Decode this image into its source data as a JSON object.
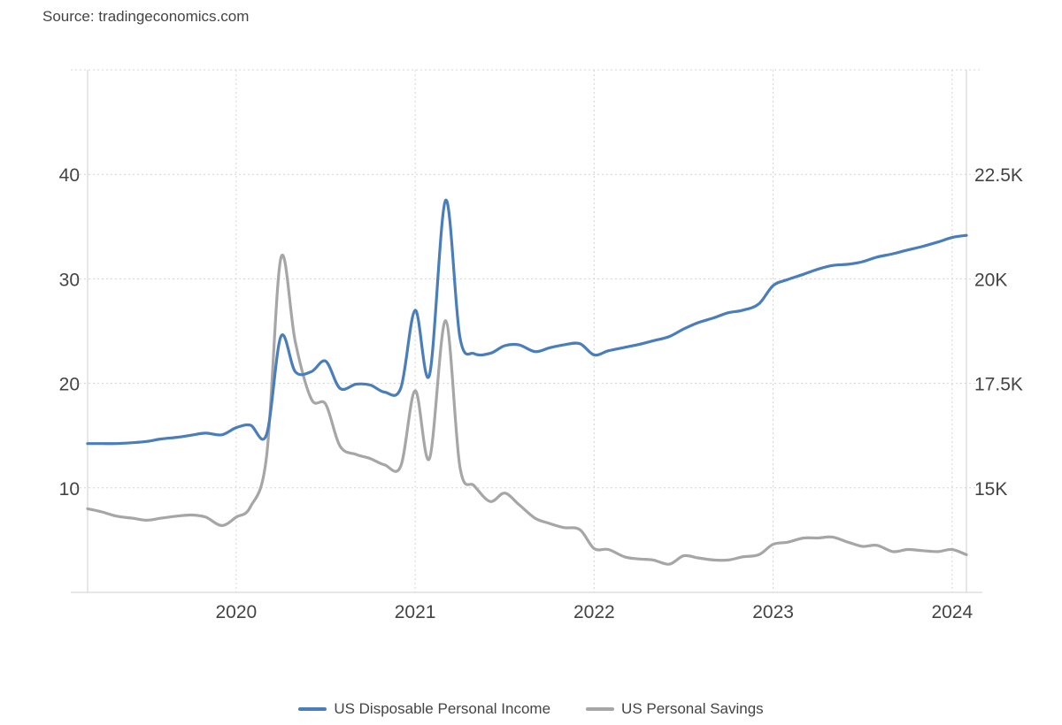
{
  "source_text": "Source: tradingeconomics.com",
  "colors": {
    "income": "#4a7ebb",
    "savings": "#a6a6a6",
    "grid": "#d4d4d4"
  },
  "chart_data": {
    "type": "line",
    "x_start": 2019.17,
    "x_end": 2024.08,
    "x_ticks": [
      {
        "value": 2020,
        "label": "2020"
      },
      {
        "value": 2021,
        "label": "2021"
      },
      {
        "value": 2022,
        "label": "2022"
      },
      {
        "value": 2023,
        "label": "2023"
      },
      {
        "value": 2024,
        "label": "2024"
      }
    ],
    "y_left": {
      "range": [
        0,
        50
      ],
      "ticks": [
        {
          "value": 10,
          "label": "10"
        },
        {
          "value": 20,
          "label": "20"
        },
        {
          "value": 30,
          "label": "30"
        },
        {
          "value": 40,
          "label": "40"
        }
      ]
    },
    "y_right": {
      "range": [
        12500,
        25000
      ],
      "ticks": [
        {
          "value": 15000,
          "label": "15K"
        },
        {
          "value": 17500,
          "label": "17.5K"
        },
        {
          "value": 20000,
          "label": "20K"
        },
        {
          "value": 22500,
          "label": "22.5K"
        }
      ]
    },
    "grid": true,
    "legend_position": "bottom-center",
    "series": [
      {
        "name": "US Disposable Personal Income",
        "axis": "right",
        "color": "#4a7ebb",
        "points": [
          [
            2019.17,
            16060
          ],
          [
            2019.25,
            16060
          ],
          [
            2019.33,
            16060
          ],
          [
            2019.42,
            16080
          ],
          [
            2019.5,
            16110
          ],
          [
            2019.58,
            16170
          ],
          [
            2019.67,
            16210
          ],
          [
            2019.75,
            16260
          ],
          [
            2019.83,
            16310
          ],
          [
            2019.92,
            16270
          ],
          [
            2020.0,
            16440
          ],
          [
            2020.08,
            16500
          ],
          [
            2020.17,
            16280
          ],
          [
            2020.25,
            18620
          ],
          [
            2020.33,
            17780
          ],
          [
            2020.42,
            17780
          ],
          [
            2020.5,
            18030
          ],
          [
            2020.58,
            17380
          ],
          [
            2020.67,
            17480
          ],
          [
            2020.75,
            17460
          ],
          [
            2020.83,
            17290
          ],
          [
            2020.92,
            17390
          ],
          [
            2021.0,
            19250
          ],
          [
            2021.08,
            17700
          ],
          [
            2021.17,
            21880
          ],
          [
            2021.25,
            18600
          ],
          [
            2021.33,
            18210
          ],
          [
            2021.42,
            18220
          ],
          [
            2021.5,
            18400
          ],
          [
            2021.58,
            18420
          ],
          [
            2021.67,
            18260
          ],
          [
            2021.75,
            18350
          ],
          [
            2021.83,
            18420
          ],
          [
            2021.92,
            18450
          ],
          [
            2022.0,
            18180
          ],
          [
            2022.08,
            18280
          ],
          [
            2022.17,
            18360
          ],
          [
            2022.25,
            18430
          ],
          [
            2022.33,
            18520
          ],
          [
            2022.42,
            18620
          ],
          [
            2022.5,
            18800
          ],
          [
            2022.58,
            18950
          ],
          [
            2022.67,
            19070
          ],
          [
            2022.75,
            19190
          ],
          [
            2022.83,
            19250
          ],
          [
            2022.92,
            19400
          ],
          [
            2023.0,
            19840
          ],
          [
            2023.08,
            19980
          ],
          [
            2023.17,
            20110
          ],
          [
            2023.25,
            20230
          ],
          [
            2023.33,
            20320
          ],
          [
            2023.42,
            20350
          ],
          [
            2023.5,
            20410
          ],
          [
            2023.58,
            20520
          ],
          [
            2023.67,
            20600
          ],
          [
            2023.75,
            20690
          ],
          [
            2023.83,
            20770
          ],
          [
            2023.92,
            20880
          ],
          [
            2024.0,
            20990
          ],
          [
            2024.08,
            21040
          ]
        ]
      },
      {
        "name": "US Personal Savings",
        "axis": "left",
        "color": "#a6a6a6",
        "points": [
          [
            2019.17,
            8.0
          ],
          [
            2019.25,
            7.7
          ],
          [
            2019.33,
            7.3
          ],
          [
            2019.42,
            7.1
          ],
          [
            2019.5,
            6.9
          ],
          [
            2019.58,
            7.1
          ],
          [
            2019.67,
            7.3
          ],
          [
            2019.75,
            7.4
          ],
          [
            2019.83,
            7.2
          ],
          [
            2019.92,
            6.4
          ],
          [
            2020.0,
            7.2
          ],
          [
            2020.08,
            8.2
          ],
          [
            2020.17,
            13.0
          ],
          [
            2020.25,
            32.0
          ],
          [
            2020.33,
            24.0
          ],
          [
            2020.42,
            18.5
          ],
          [
            2020.5,
            18.0
          ],
          [
            2020.58,
            14.0
          ],
          [
            2020.67,
            13.2
          ],
          [
            2020.75,
            12.8
          ],
          [
            2020.83,
            12.2
          ],
          [
            2020.92,
            12.1
          ],
          [
            2021.0,
            19.3
          ],
          [
            2021.08,
            12.8
          ],
          [
            2021.17,
            26.0
          ],
          [
            2021.25,
            12.0
          ],
          [
            2021.33,
            10.2
          ],
          [
            2021.42,
            8.7
          ],
          [
            2021.5,
            9.5
          ],
          [
            2021.58,
            8.4
          ],
          [
            2021.67,
            7.1
          ],
          [
            2021.75,
            6.6
          ],
          [
            2021.83,
            6.2
          ],
          [
            2021.92,
            6.0
          ],
          [
            2022.0,
            4.2
          ],
          [
            2022.08,
            4.1
          ],
          [
            2022.17,
            3.4
          ],
          [
            2022.25,
            3.2
          ],
          [
            2022.33,
            3.1
          ],
          [
            2022.42,
            2.7
          ],
          [
            2022.5,
            3.5
          ],
          [
            2022.58,
            3.3
          ],
          [
            2022.67,
            3.1
          ],
          [
            2022.75,
            3.1
          ],
          [
            2022.83,
            3.4
          ],
          [
            2022.92,
            3.6
          ],
          [
            2023.0,
            4.6
          ],
          [
            2023.08,
            4.8
          ],
          [
            2023.17,
            5.2
          ],
          [
            2023.25,
            5.2
          ],
          [
            2023.33,
            5.3
          ],
          [
            2023.42,
            4.8
          ],
          [
            2023.5,
            4.4
          ],
          [
            2023.58,
            4.5
          ],
          [
            2023.67,
            3.9
          ],
          [
            2023.75,
            4.1
          ],
          [
            2023.83,
            4.0
          ],
          [
            2023.92,
            3.9
          ],
          [
            2024.0,
            4.1
          ],
          [
            2024.08,
            3.6
          ]
        ]
      }
    ]
  }
}
